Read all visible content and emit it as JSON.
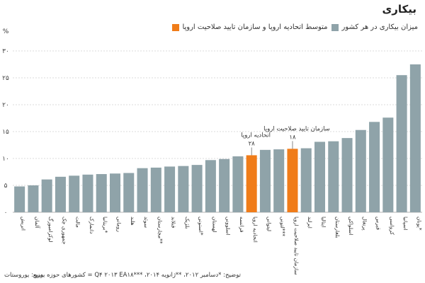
{
  "header": {
    "title": "بیکاری"
  },
  "legend": {
    "eu_label": "متوسط اتحادیه اروپا و سازمان تایید صلاحیت اروپا",
    "country_label": "میزان بیکاری در هر کشور"
  },
  "colors": {
    "country": "#8fa3a9",
    "highlight": "#f07c19",
    "grid": "#cfcfcf",
    "axis": "#999999"
  },
  "chart_data": {
    "type": "bar",
    "title": "",
    "xlabel": "",
    "ylabel": "%",
    "ylim": [
      0,
      30
    ],
    "yticks": [
      "۰",
      "۵",
      "۱۰",
      "۱۵",
      "۲۰",
      "۲۵",
      "۳۰"
    ],
    "grid": true,
    "categories": [
      "اتریش",
      "آلمان",
      "لوکزامبورگ",
      "جمهوری چک",
      "مالت",
      "دانمارک",
      "بریتانیا*",
      "رومانی",
      "هلند",
      "سوئد",
      "مجارستان**",
      "فنلاند",
      "بلژیک",
      "استونی*",
      "لهستان",
      "اسلوونی",
      "فرانسه",
      "اتحادیه اروپا",
      "لیتوانی",
      "لتونی***",
      "سازمان تایید صلاحیت اروپا",
      "ایرلند",
      "ایتالیا",
      "بلغارستان",
      "اسلواکی",
      "پرتغال",
      "قبرس",
      "کرواسی",
      "اسپانیا",
      "یونان*"
    ],
    "values": [
      4.8,
      5.0,
      6.1,
      6.6,
      6.8,
      7.0,
      7.1,
      7.2,
      7.3,
      8.2,
      8.3,
      8.5,
      8.6,
      8.8,
      9.7,
      9.9,
      10.4,
      10.6,
      11.6,
      11.7,
      11.8,
      11.9,
      13.1,
      13.2,
      13.8,
      15.3,
      16.8,
      17.6,
      25.5,
      27.5
    ],
    "highlight_labels": [
      {
        "index": 17,
        "name": "اتحادیه اروپا",
        "value": "۲۸"
      },
      {
        "index": 20,
        "name": "سازمان تایید صلاحیت اروپا",
        "value": "۱۸"
      }
    ]
  },
  "footer": {
    "source": "منبع: یوروستات",
    "note": "توضیح: *دسامبر ۲۰۱۲، **ژانویه ۲۰۱۴، ***Q۴ ۲۰۱۳ EA۱۸ = کشورهای حوزه یورو"
  }
}
